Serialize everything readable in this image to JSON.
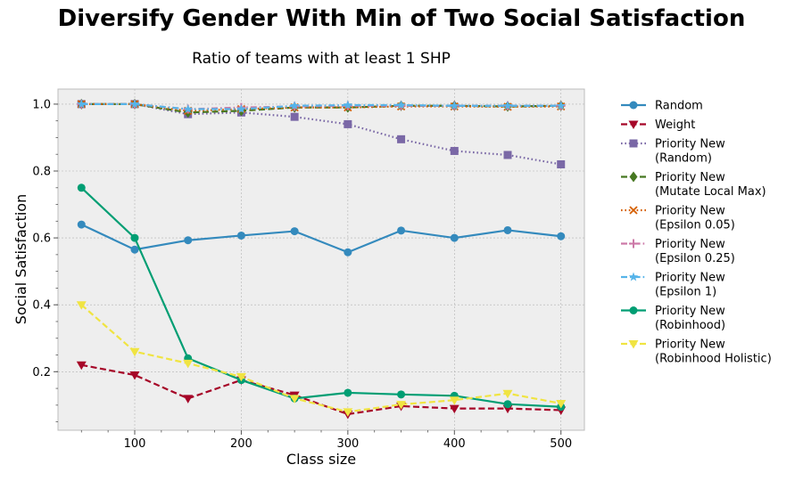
{
  "chart_data": {
    "type": "line",
    "title": "Diversify Gender With Min of Two Social Satisfaction",
    "subtitle": "Ratio of teams with at least 1 SHP",
    "xlabel": "Class size",
    "ylabel": "Social Satisfaction",
    "xlim": [
      28,
      522
    ],
    "ylim": [
      0.025,
      1.045
    ],
    "xticks": [
      100,
      200,
      300,
      400,
      500
    ],
    "yticks": [
      0.2,
      0.4,
      0.6,
      0.8,
      1.0
    ],
    "ytick_labels": [
      "0.2",
      "0.4",
      "0.6",
      "0.8",
      "1.0"
    ],
    "grid": true,
    "legend_position": "outside-right",
    "x": [
      50,
      100,
      150,
      200,
      250,
      300,
      350,
      400,
      450,
      500
    ],
    "series": [
      {
        "name": "Random",
        "color": "#348ABD",
        "marker": "circle",
        "dash": "solid",
        "values": [
          0.64,
          0.565,
          0.593,
          0.607,
          0.62,
          0.557,
          0.622,
          0.6,
          0.623,
          0.605
        ]
      },
      {
        "name": "Weight",
        "color": "#A60628",
        "marker": "triangle-down",
        "dash": "dashed",
        "values": [
          0.22,
          0.19,
          0.12,
          0.175,
          0.13,
          0.073,
          0.097,
          0.09,
          0.09,
          0.085
        ]
      },
      {
        "name": "Priority New\n(Random)",
        "color": "#7A68A6",
        "marker": "square",
        "dash": "dotted",
        "values": [
          1.0,
          1.0,
          0.97,
          0.975,
          0.962,
          0.94,
          0.895,
          0.86,
          0.848,
          0.82
        ]
      },
      {
        "name": "Priority New\n(Mutate Local Max)",
        "color": "#467821",
        "marker": "diamond",
        "dash": "dashed",
        "values": [
          1.0,
          1.0,
          0.975,
          0.98,
          0.99,
          0.99,
          0.995,
          0.995,
          0.993,
          0.995
        ]
      },
      {
        "name": "Priority New\n(Epsilon 0.05)",
        "color": "#D55E00",
        "marker": "x",
        "dash": "dotted",
        "values": [
          1.0,
          1.0,
          0.98,
          0.985,
          0.99,
          0.99,
          0.993,
          0.993,
          0.992,
          0.993
        ]
      },
      {
        "name": "Priority New\n(Epsilon 0.25)",
        "color": "#CC79A7",
        "marker": "plus",
        "dash": "dashdot",
        "values": [
          1.0,
          1.0,
          0.985,
          0.99,
          0.993,
          0.995,
          0.995,
          0.995,
          0.995,
          0.995
        ]
      },
      {
        "name": "Priority New\n(Epsilon 1)",
        "color": "#56B4E9",
        "marker": "star",
        "dash": "dashdot",
        "values": [
          1.0,
          1.0,
          0.985,
          0.985,
          0.995,
          0.997,
          0.997,
          0.995,
          0.995,
          0.995
        ]
      },
      {
        "name": "Priority New\n(Robinhood)",
        "color": "#009E73",
        "marker": "circle",
        "dash": "solid",
        "values": [
          0.75,
          0.6,
          0.24,
          0.175,
          0.12,
          0.137,
          0.132,
          0.128,
          0.103,
          0.095
        ]
      },
      {
        "name": "Priority New\n(Robinhood Holistic)",
        "color": "#F0E442",
        "marker": "triangle-down",
        "dash": "dashed",
        "values": [
          0.4,
          0.26,
          0.225,
          0.185,
          0.12,
          0.08,
          0.102,
          0.115,
          0.135,
          0.105
        ]
      }
    ]
  }
}
